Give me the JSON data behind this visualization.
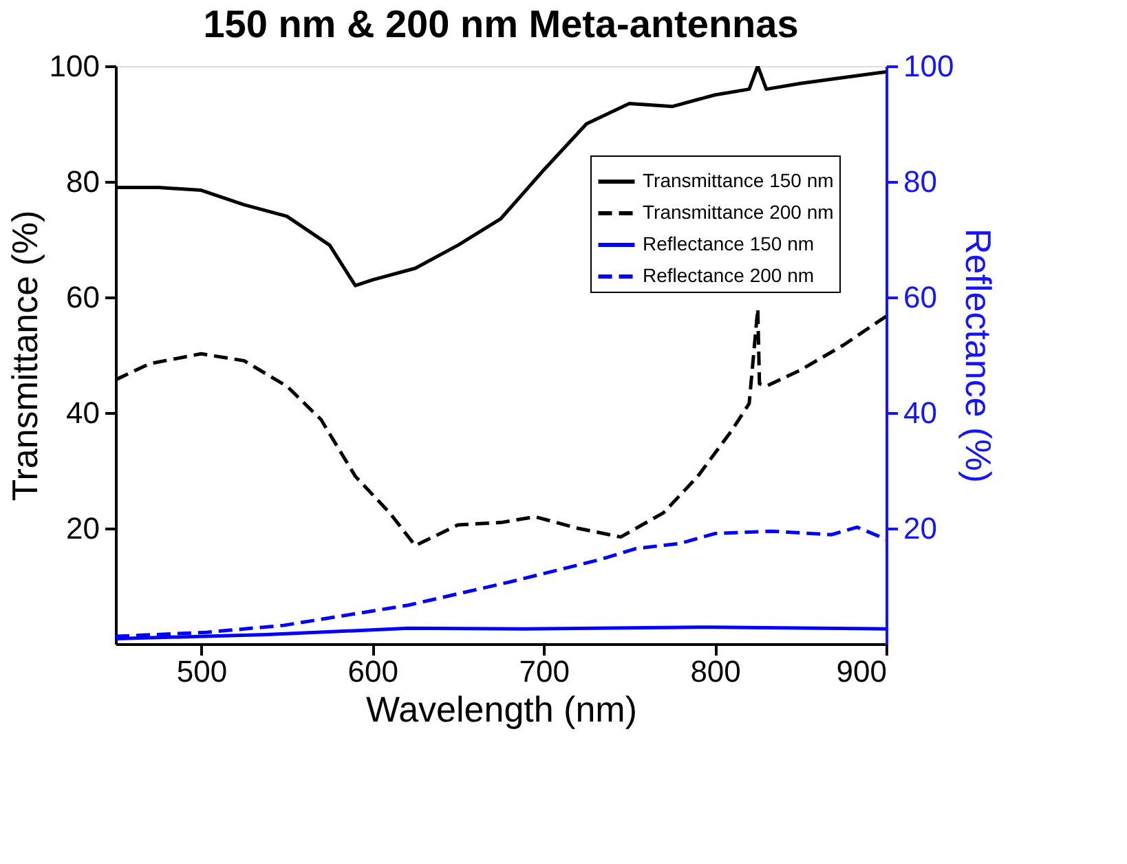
{
  "chart_data": {
    "type": "line",
    "title": "150 nm & 200 nm Meta-antennas",
    "xlabel": "Wavelength (nm)",
    "ylabel": "Transmittance (%)",
    "y2label": "Reflectance (%)",
    "xlim": [
      450,
      900
    ],
    "xticks": [
      500,
      600,
      700,
      800,
      900
    ],
    "ylim": [
      0,
      100
    ],
    "yticks": [
      20,
      40,
      60,
      80,
      100
    ],
    "y2lim": [
      0,
      100
    ],
    "y2ticks": [
      20,
      40,
      60,
      80,
      100
    ],
    "legend": "top right",
    "grid": false,
    "marker": "none",
    "series": [
      {
        "name": "Transmittance 150 nm",
        "color": "#000000",
        "line_style": "solid",
        "x": [
          450,
          475,
          500,
          525,
          550,
          575,
          590,
          600,
          625,
          650,
          675,
          700,
          725,
          750,
          775,
          800,
          820,
          825,
          830,
          850,
          875,
          900
        ],
        "values": [
          79,
          79,
          78.5,
          76,
          74,
          69,
          62,
          63,
          65,
          69,
          73.6,
          82,
          90,
          93.5,
          93,
          95,
          96,
          100,
          96,
          97,
          98,
          99
        ]
      },
      {
        "name": "Transmittance 200 nm",
        "color": "#000000",
        "line_style": "dashed",
        "x": [
          450,
          470,
          500,
          525,
          550,
          570,
          590,
          610,
          625,
          650,
          675,
          695,
          720,
          745,
          770,
          790,
          810,
          820,
          825,
          826,
          830,
          850,
          875,
          900
        ],
        "values": [
          45.7,
          48.5,
          50.2,
          49,
          44.6,
          38.8,
          29,
          22.7,
          17,
          20.6,
          21,
          22,
          20,
          18.5,
          22.7,
          29,
          37,
          41.6,
          58,
          45,
          44.6,
          47.4,
          51.7,
          56.7
        ]
      },
      {
        "name": "Reflectance 150 nm",
        "color": "#0000ff",
        "line_style": "solid",
        "axis": "y2",
        "x": [
          450,
          538,
          621,
          688,
          798,
          900
        ],
        "values": [
          0.9,
          1.6,
          2.7,
          2.6,
          2.9,
          2.6
        ]
      },
      {
        "name": "Reflectance 200 nm",
        "color": "#0000ff",
        "line_style": "dashed",
        "axis": "y2",
        "x": [
          450,
          503,
          548,
          621,
          680,
          733,
          754,
          780,
          800,
          833,
          868,
          883,
          900
        ],
        "values": [
          1.3,
          2,
          3.2,
          6.7,
          10.7,
          14.6,
          16.5,
          17.4,
          19.1,
          19.5,
          18.9,
          20.2,
          18.1
        ]
      }
    ]
  }
}
